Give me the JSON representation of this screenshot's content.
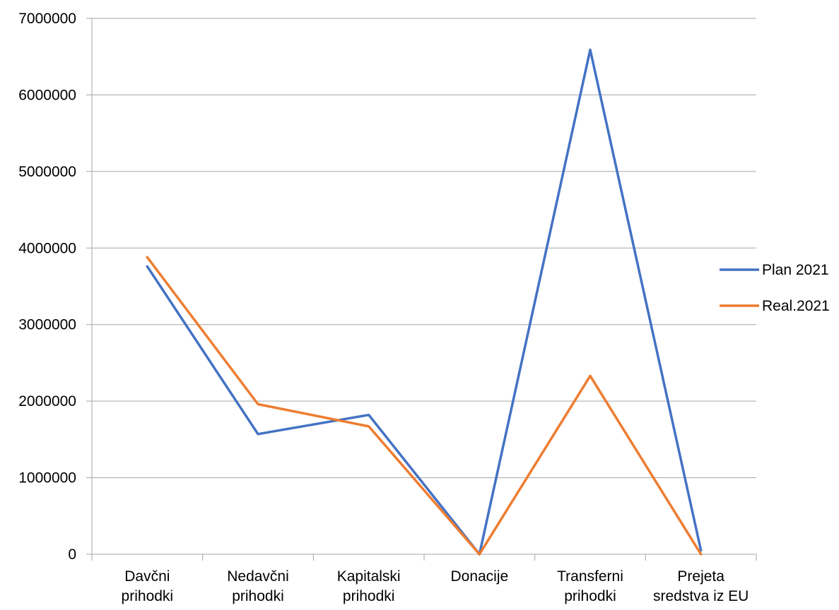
{
  "chart_data": {
    "type": "line",
    "title": "",
    "xlabel": "",
    "ylabel": "",
    "categories": [
      [
        "Davčni",
        "prihodki"
      ],
      [
        "Nedavčni",
        "prihodki"
      ],
      [
        "Kapitalski",
        "prihodki"
      ],
      [
        "Donacije"
      ],
      [
        "Transferni",
        "prihodki"
      ],
      [
        "Prejeta",
        "sredstva iz EU"
      ]
    ],
    "ylim": [
      0,
      7000000
    ],
    "yticks": [
      "0",
      "1000000",
      "2000000",
      "3000000",
      "4000000",
      "5000000",
      "6000000",
      "7000000"
    ],
    "grid": true,
    "legend": "right",
    "series": [
      {
        "name": "Plan 2021",
        "color": "#4472C4",
        "values": [
          3760000,
          1570000,
          1820000,
          0,
          6590000,
          50000
        ]
      },
      {
        "name": "Real.2021",
        "color": "#ED7D31",
        "values": [
          3880000,
          1960000,
          1670000,
          0,
          2330000,
          0
        ]
      }
    ]
  }
}
